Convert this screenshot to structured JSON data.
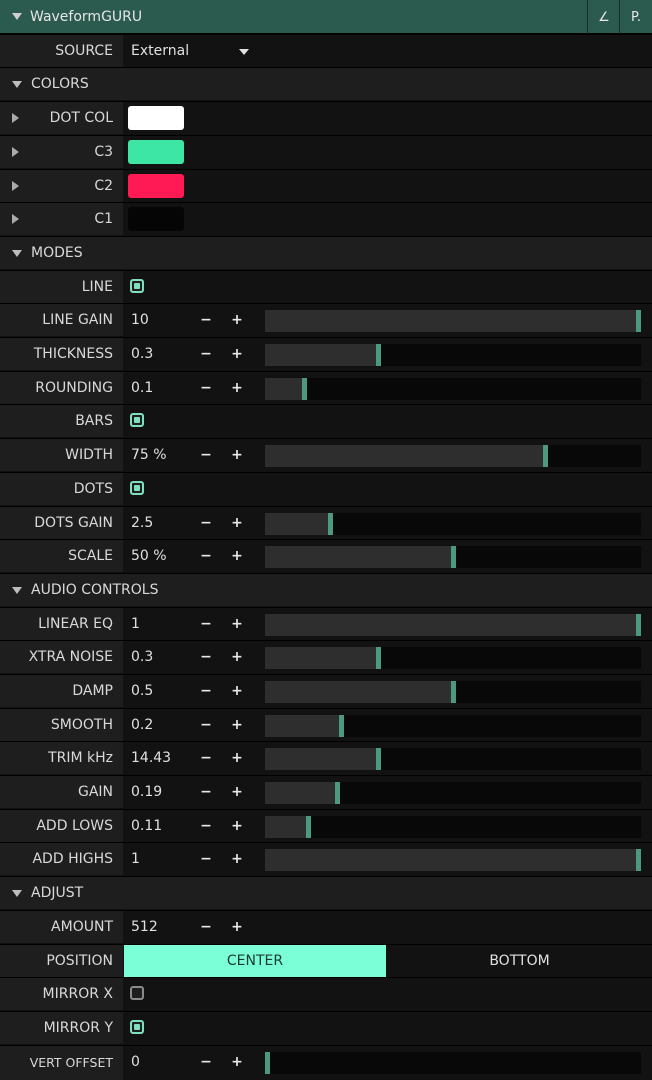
{
  "panel": {
    "title": "WaveformGURU",
    "btn1": "∠",
    "btn2": "P.",
    "accent": "#7affd6"
  },
  "source": {
    "label": "SOURCE",
    "value": "External"
  },
  "colors": {
    "header": "COLORS",
    "items": [
      {
        "label": "DOT COL",
        "color": "#ffffff"
      },
      {
        "label": "C3",
        "color": "#3ee6a6"
      },
      {
        "label": "C2",
        "color": "#ff1a55"
      },
      {
        "label": "C1",
        "color": "#050505"
      }
    ]
  },
  "modes": {
    "header": "MODES",
    "line": {
      "label": "LINE",
      "checked": true
    },
    "line_gain": {
      "label": "LINE GAIN",
      "value": "10",
      "fraction": 1.0
    },
    "thickness": {
      "label": "THICKNESS",
      "value": "0.3",
      "fraction": 0.3
    },
    "rounding": {
      "label": "ROUNDING",
      "value": "0.1",
      "fraction": 0.1
    },
    "bars": {
      "label": "BARS",
      "checked": true
    },
    "width": {
      "label": "WIDTH",
      "value": "75 %",
      "fraction": 0.75
    },
    "dots": {
      "label": "DOTS",
      "checked": true
    },
    "dots_gain": {
      "label": "DOTS GAIN",
      "value": "2.5",
      "fraction": 0.17
    },
    "scale": {
      "label": "SCALE",
      "value": "50 %",
      "fraction": 0.5
    }
  },
  "audio": {
    "header": "AUDIO CONTROLS",
    "linear_eq": {
      "label": "LINEAR EQ",
      "value": "1",
      "fraction": 1.0
    },
    "xtra_noise": {
      "label": "XTRA NOISE",
      "value": "0.3",
      "fraction": 0.3
    },
    "damp": {
      "label": "DAMP",
      "value": "0.5",
      "fraction": 0.5
    },
    "smooth": {
      "label": "SMOOTH",
      "value": "0.2",
      "fraction": 0.2
    },
    "trim": {
      "label": "TRIM kHz",
      "value": "14.43",
      "fraction": 0.3
    },
    "gain": {
      "label": "GAIN",
      "value": "0.19",
      "fraction": 0.19
    },
    "add_lows": {
      "label": "ADD LOWS",
      "value": "0.11",
      "fraction": 0.11
    },
    "add_highs": {
      "label": "ADD HIGHS",
      "value": "1",
      "fraction": 1.0
    }
  },
  "adjust": {
    "header": "ADJUST",
    "amount": {
      "label": "AMOUNT",
      "value": "512"
    },
    "position": {
      "label": "POSITION",
      "options": [
        "CENTER",
        "BOTTOM"
      ],
      "selected": "CENTER"
    },
    "mirror_x": {
      "label": "MIRROR X",
      "checked": false
    },
    "mirror_y": {
      "label": "MIRROR Y",
      "checked": true
    },
    "vert_offset": {
      "label": "VERT OFFSET",
      "value": "0",
      "fraction": 0.0
    }
  },
  "buttons": {
    "minus": "−",
    "plus": "+"
  }
}
